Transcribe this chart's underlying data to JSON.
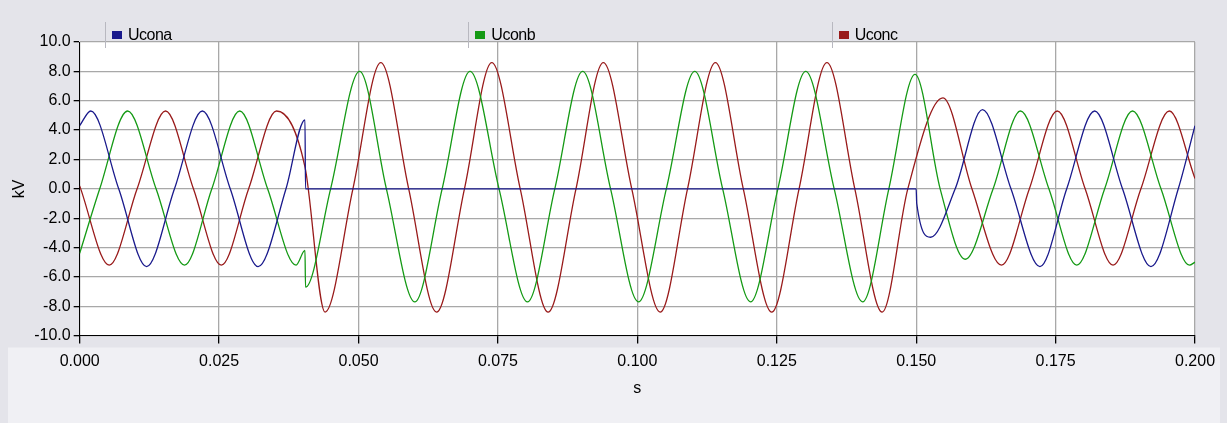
{
  "chart_data": {
    "type": "line",
    "xlabel": "s",
    "ylabel": "kV",
    "xlim": [
      0,
      0.2
    ],
    "xticks": [
      {
        "value": 0,
        "label": "0.000"
      },
      {
        "value": 0.025,
        "label": "0.025"
      },
      {
        "value": 0.05,
        "label": "0.050"
      },
      {
        "value": 0.075,
        "label": "0.075"
      },
      {
        "value": 0.1,
        "label": "0.100"
      },
      {
        "value": 0.125,
        "label": "0.125"
      },
      {
        "value": 0.15,
        "label": "0.150"
      },
      {
        "value": 0.175,
        "label": "0.175"
      },
      {
        "value": 0.2,
        "label": "0.200"
      }
    ],
    "ylim": [
      -10,
      10
    ],
    "yticks": [
      {
        "value": -10,
        "label": "-10.0"
      },
      {
        "value": -8,
        "label": "-8.0"
      },
      {
        "value": -6,
        "label": "-6.0"
      },
      {
        "value": -4,
        "label": "-4.0"
      },
      {
        "value": -2,
        "label": "-2.0"
      },
      {
        "value": 0,
        "label": "0.0"
      },
      {
        "value": 2,
        "label": "2.0"
      },
      {
        "value": 4,
        "label": "4.0"
      },
      {
        "value": 6,
        "label": "6.0"
      },
      {
        "value": 8,
        "label": "8.0"
      },
      {
        "value": 10,
        "label": "10.0"
      }
    ],
    "grid": true,
    "legend": "top",
    "marker": "none",
    "line_style": "solid",
    "series": [
      {
        "name": "Ucona",
        "color": "#1a1a8c",
        "x": [
          0,
          0.002,
          0.007,
          0.012,
          0.017,
          0.022,
          0.027,
          0.032,
          0.037,
          0.0404,
          0.0405,
          0.15,
          0.1501,
          0.1526,
          0.157,
          0.1619,
          0.167,
          0.1722,
          0.177,
          0.182,
          0.187,
          0.1921,
          0.197,
          0.2
        ],
        "values": [
          4.3,
          5.3,
          0,
          -5.3,
          0,
          5.3,
          0,
          -5.3,
          0,
          4.7,
          0,
          0,
          -1,
          -3.3,
          0,
          5.4,
          0,
          -5.3,
          0,
          5.3,
          0,
          -5.3,
          0,
          4.3
        ]
      },
      {
        "name": "Uconb",
        "color": "#159a15",
        "x": [
          0,
          0.0036,
          0.0086,
          0.0137,
          0.0188,
          0.0237,
          0.0287,
          0.0337,
          0.0388,
          0.0404,
          0.0405,
          0.045,
          0.0502,
          0.055,
          0.0601,
          0.065,
          0.07,
          0.0752,
          0.0803,
          0.0852,
          0.0902,
          0.0952,
          0.1002,
          0.1052,
          0.1103,
          0.1153,
          0.1203,
          0.1252,
          0.1302,
          0.1353,
          0.1404,
          0.1451,
          0.1498,
          0.1543,
          0.1588,
          0.1638,
          0.1687,
          0.1738,
          0.1788,
          0.1838,
          0.1888,
          0.1939,
          0.199,
          0.2
        ],
        "values": [
          -4.4,
          0,
          5.3,
          0,
          -5.2,
          0,
          5.3,
          0,
          -5.2,
          -4.2,
          -6.7,
          0,
          8,
          0,
          -7.7,
          0,
          8,
          0,
          -7.7,
          0,
          8,
          0,
          -7.7,
          0,
          8,
          0,
          -7.7,
          0,
          8,
          0,
          -7.7,
          0,
          7.8,
          0,
          -4.8,
          0,
          5.3,
          0,
          -5.2,
          0,
          5.3,
          0,
          -5.2,
          -5.0
        ]
      },
      {
        "name": "Uconc",
        "color": "#991b1b",
        "x": [
          0,
          0.0053,
          0.0103,
          0.0154,
          0.0204,
          0.0254,
          0.0303,
          0.0353,
          0.0404,
          0.044,
          0.049,
          0.054,
          0.059,
          0.064,
          0.069,
          0.0739,
          0.079,
          0.084,
          0.089,
          0.0939,
          0.099,
          0.1041,
          0.109,
          0.114,
          0.119,
          0.1241,
          0.129,
          0.134,
          0.139,
          0.1439,
          0.1485,
          0.1548,
          0.16,
          0.1653,
          0.1703,
          0.1753,
          0.1803,
          0.1853,
          0.1903,
          0.1954,
          0.2
        ],
        "values": [
          0.2,
          -5.2,
          0,
          5.3,
          0,
          -5.2,
          0,
          5.3,
          1.5,
          -8.4,
          0,
          8.6,
          0,
          -8.4,
          0,
          8.6,
          0,
          -8.4,
          0,
          8.6,
          0,
          -8.4,
          0,
          8.6,
          0,
          -8.4,
          0,
          8.6,
          0,
          -8.4,
          0,
          6.2,
          0,
          -5.2,
          0,
          5.3,
          0,
          -5.2,
          0,
          5.3,
          0.7
        ]
      }
    ]
  }
}
